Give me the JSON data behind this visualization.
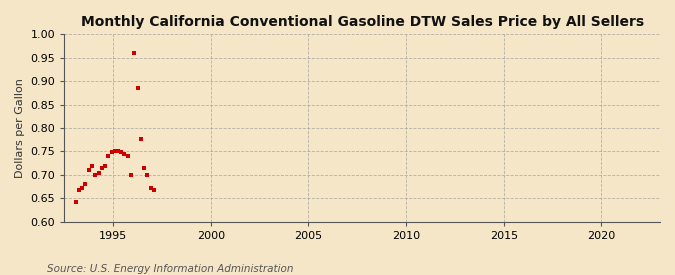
{
  "title": "Monthly California Conventional Gasoline DTW Sales Price by All Sellers",
  "ylabel": "Dollars per Gallon",
  "source": "Source: U.S. Energy Information Administration",
  "background_color": "#f5e6c8",
  "marker_color": "#cc0000",
  "xlim": [
    1992.5,
    2023.0
  ],
  "ylim": [
    0.6,
    1.0
  ],
  "xticks": [
    1995,
    2000,
    2005,
    2010,
    2015,
    2020
  ],
  "yticks": [
    0.6,
    0.65,
    0.7,
    0.75,
    0.8,
    0.85,
    0.9,
    0.95,
    1.0
  ],
  "data_x": [
    1993.08,
    1993.25,
    1993.42,
    1993.58,
    1993.75,
    1993.92,
    1994.08,
    1994.25,
    1994.42,
    1994.58,
    1994.75,
    1994.92,
    1995.08,
    1995.25,
    1995.42,
    1995.58,
    1995.75,
    1995.92,
    1996.08,
    1996.25,
    1996.42,
    1996.58,
    1996.75,
    1996.92,
    1997.08
  ],
  "data_y": [
    0.643,
    0.668,
    0.672,
    0.68,
    0.71,
    0.718,
    0.7,
    0.705,
    0.715,
    0.72,
    0.74,
    0.748,
    0.75,
    0.752,
    0.748,
    0.745,
    0.74,
    0.7,
    0.96,
    0.885,
    0.777,
    0.715,
    0.7,
    0.672,
    0.668
  ],
  "title_fontsize": 10,
  "ylabel_fontsize": 8,
  "tick_fontsize": 8,
  "source_fontsize": 7.5
}
